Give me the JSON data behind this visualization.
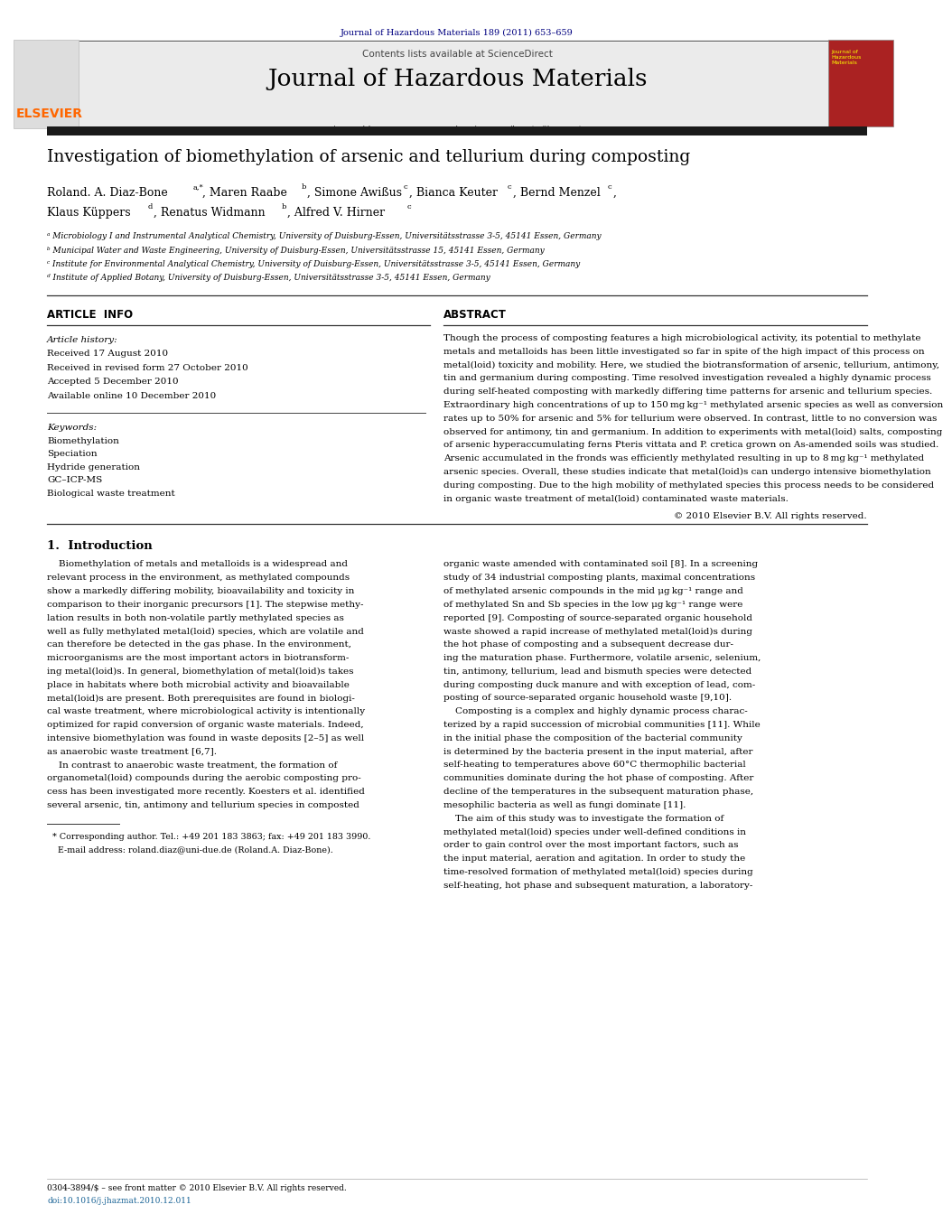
{
  "page_width": 9.92,
  "page_height": 13.23,
  "bg_color": "#ffffff",
  "header_journal_ref": "Journal of Hazardous Materials 189 (2011) 653–659",
  "header_ref_color": "#000080",
  "journal_header_bg": "#e8e8e8",
  "journal_name": "Journal of Hazardous Materials",
  "contents_text": "Contents lists available at ScienceDirect",
  "science_direct_color": "#1a6496",
  "journal_homepage_text": "journal homepage: www.elsevier.com/locate/jhazmat",
  "journal_homepage_color": "#1a6496",
  "elsevier_color": "#ff6600",
  "dark_bar_color": "#1a1a1a",
  "title": "Investigation of biomethylation of arsenic and tellurium during composting",
  "author_line1": "Roland. A. Diaz-Bone",
  "author_line1_super": "a,*",
  "author_line1_cont": ", Maren Raabe",
  "author_line1_super2": "b",
  "author_line1_cont2": ", Simone Awißus",
  "author_line1_super3": "c",
  "author_line1_cont3": ", Bianca Keuter",
  "author_line1_super4": "c",
  "author_line1_cont4": ", Bernd Menzel",
  "author_line1_super5": "c",
  "author_line1_cont5": ",",
  "author_line2": "Klaus Küppers",
  "author_line2_super": "d",
  "author_line2_cont": ", Renatus Widmann",
  "author_line2_super2": "b",
  "author_line2_cont2": ", Alfred V. Hirner",
  "author_line2_super3": "c",
  "affil_a": "ᵃ Microbiology I and Instrumental Analytical Chemistry, University of Duisburg-Essen, Universitätsstrasse 3-5, 45141 Essen, Germany",
  "affil_b": "ᵇ Municipal Water and Waste Engineering, University of Duisburg-Essen, Universitätsstrasse 15, 45141 Essen, Germany",
  "affil_c": "ᶜ Institute for Environmental Analytical Chemistry, University of Duisburg-Essen, Universitätsstrasse 3-5, 45141 Essen, Germany",
  "affil_d": "ᵈ Institute of Applied Botany, University of Duisburg-Essen, Universitätsstrasse 3-5, 45141 Essen, Germany",
  "article_info_title": "ARTICLE  INFO",
  "abstract_title": "ABSTRACT",
  "article_history_label": "Article history:",
  "received1": "Received 17 August 2010",
  "received2": "Received in revised form 27 October 2010",
  "accepted": "Accepted 5 December 2010",
  "available": "Available online 10 December 2010",
  "keywords_label": "Keywords:",
  "keyword1": "Biomethylation",
  "keyword2": "Speciation",
  "keyword3": "Hydride generation",
  "keyword4": "GC–ICP-MS",
  "keyword5": "Biological waste treatment",
  "abstract_lines": [
    "Though the process of composting features a high microbiological activity, its potential to methylate",
    "metals and metalloids has been little investigated so far in spite of the high impact of this process on",
    "metal(loid) toxicity and mobility. Here, we studied the biotransformation of arsenic, tellurium, antimony,",
    "tin and germanium during composting. Time resolved investigation revealed a highly dynamic process",
    "during self-heated composting with markedly differing time patterns for arsenic and tellurium species.",
    "Extraordinary high concentrations of up to 150 mg kg⁻¹ methylated arsenic species as well as conversion",
    "rates up to 50% for arsenic and 5% for tellurium were observed. In contrast, little to no conversion was",
    "observed for antimony, tin and germanium. In addition to experiments with metal(loid) salts, composting",
    "of arsenic hyperaccumulating ferns Pteris vittata and P. cretica grown on As-amended soils was studied.",
    "Arsenic accumulated in the fronds was efficiently methylated resulting in up to 8 mg kg⁻¹ methylated",
    "arsenic species. Overall, these studies indicate that metal(loid)s can undergo intensive biomethylation",
    "during composting. Due to the high mobility of methylated species this process needs to be considered",
    "in organic waste treatment of metal(loid) contaminated waste materials."
  ],
  "copyright_text": "© 2010 Elsevier B.V. All rights reserved.",
  "intro_heading": "1.  Introduction",
  "intro_left_lines": [
    "    Biomethylation of metals and metalloids is a widespread and",
    "relevant process in the environment, as methylated compounds",
    "show a markedly differing mobility, bioavailability and toxicity in",
    "comparison to their inorganic precursors [1]. The stepwise methy-",
    "lation results in both non-volatile partly methylated species as",
    "well as fully methylated metal(loid) species, which are volatile and",
    "can therefore be detected in the gas phase. In the environment,",
    "microorganisms are the most important actors in biotransform-",
    "ing metal(loid)s. In general, biomethylation of metal(loid)s takes",
    "place in habitats where both microbial activity and bioavailable",
    "metal(loid)s are present. Both prerequisites are found in biologi-",
    "cal waste treatment, where microbiological activity is intentionally",
    "optimized for rapid conversion of organic waste materials. Indeed,",
    "intensive biomethylation was found in waste deposits [2–5] as well",
    "as anaerobic waste treatment [6,7].",
    "    In contrast to anaerobic waste treatment, the formation of",
    "organometal(loid) compounds during the aerobic composting pro-",
    "cess has been investigated more recently. Koesters et al. identified",
    "several arsenic, tin, antimony and tellurium species in composted"
  ],
  "intro_right_lines": [
    "organic waste amended with contaminated soil [8]. In a screening",
    "study of 34 industrial composting plants, maximal concentrations",
    "of methylated arsenic compounds in the mid μg kg⁻¹ range and",
    "of methylated Sn and Sb species in the low μg kg⁻¹ range were",
    "reported [9]. Composting of source-separated organic household",
    "waste showed a rapid increase of methylated metal(loid)s during",
    "the hot phase of composting and a subsequent decrease dur-",
    "ing the maturation phase. Furthermore, volatile arsenic, selenium,",
    "tin, antimony, tellurium, lead and bismuth species were detected",
    "during composting duck manure and with exception of lead, com-",
    "posting of source-separated organic household waste [9,10].",
    "    Composting is a complex and highly dynamic process charac-",
    "terized by a rapid succession of microbial communities [11]. While",
    "in the initial phase the composition of the bacterial community",
    "is determined by the bacteria present in the input material, after",
    "self-heating to temperatures above 60°C thermophilic bacterial",
    "communities dominate during the hot phase of composting. After",
    "decline of the temperatures in the subsequent maturation phase,",
    "mesophilic bacteria as well as fungi dominate [11].",
    "    The aim of this study was to investigate the formation of",
    "methylated metal(loid) species under well-defined conditions in",
    "order to gain control over the most important factors, such as",
    "the input material, aeration and agitation. In order to study the",
    "time-resolved formation of methylated metal(loid) species during",
    "self-heating, hot phase and subsequent maturation, a laboratory-"
  ],
  "footnote_line1": "  * Corresponding author. Tel.: +49 201 183 3863; fax: +49 201 183 3990.",
  "footnote_line2": "    E-mail address: roland.diaz@uni-due.de (Roland.A. Diaz-Bone).",
  "footer_issn": "0304-3894/$ – see front matter © 2010 Elsevier B.V. All rights reserved.",
  "footer_doi": "doi:10.1016/j.jhazmat.2010.12.011"
}
